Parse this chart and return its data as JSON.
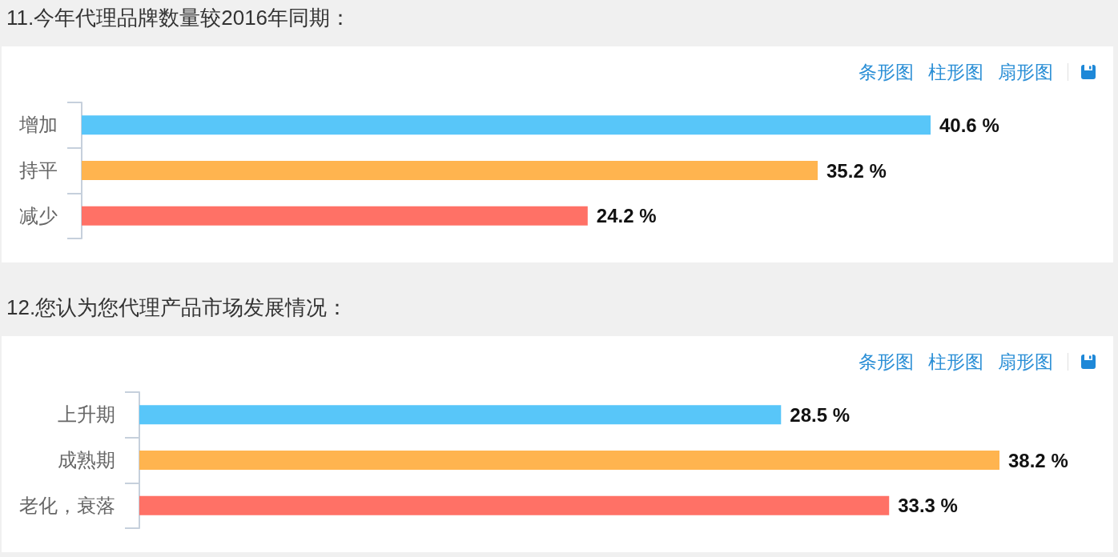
{
  "chart_data": [
    {
      "type": "bar",
      "orientation": "horizontal",
      "title": "11.今年代理品牌数量较2016年同期：",
      "categories": [
        "增加",
        "持平",
        "减少"
      ],
      "values": [
        40.6,
        35.2,
        24.2
      ],
      "colors": [
        "#58c6f9",
        "#ffb44f",
        "#ff7166"
      ],
      "value_labels": [
        "40.6 %",
        "35.2 %",
        "24.2 %"
      ],
      "tick_labels": "y",
      "annotations": [
        "条形图",
        "柱形图",
        "扇形图"
      ]
    },
    {
      "type": "bar",
      "orientation": "horizontal",
      "title": "12.您认为您代理产品市场发展情况：",
      "categories": [
        "上升期",
        "成熟期",
        "老化，衰落"
      ],
      "values": [
        28.5,
        38.2,
        33.3
      ],
      "colors": [
        "#58c6f9",
        "#ffb44f",
        "#ff7166"
      ],
      "value_labels": [
        "28.5 %",
        "38.2 %",
        "33.3 %"
      ],
      "tick_labels": "y",
      "annotations": [
        "条形图",
        "柱形图",
        "扇形图"
      ]
    }
  ]
}
